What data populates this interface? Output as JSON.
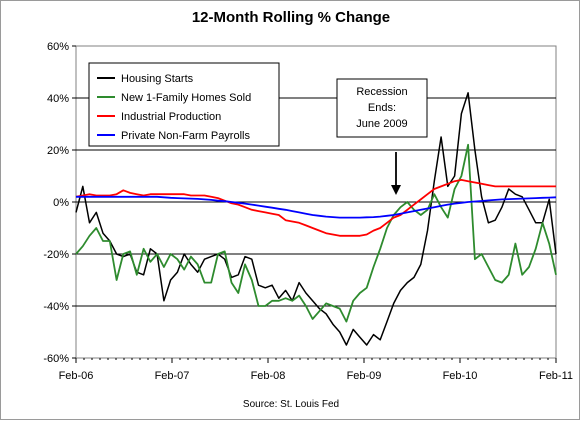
{
  "chart_data": {
    "type": "line",
    "title": "12-Month Rolling % Change",
    "source": "Source: St. Louis Fed",
    "xlabel": "",
    "ylabel": "",
    "ylim": [
      -60,
      60
    ],
    "y_ticks": [
      -60,
      -40,
      -20,
      0,
      20,
      40,
      60
    ],
    "y_tick_labels": [
      "-60%",
      "-40%",
      "-20%",
      "0%",
      "20%",
      "40%",
      "60%"
    ],
    "x_ticks": [
      "Feb-06",
      "Feb-07",
      "Feb-08",
      "Feb-09",
      "Feb-10",
      "Feb-11"
    ],
    "grid": "horizontal",
    "legend_position": "top-left",
    "annotation": {
      "lines": [
        "Recession",
        "Ends:",
        "June 2009"
      ],
      "points_to": "2009-06"
    },
    "x_start": "2006-02",
    "series": [
      {
        "name": "Housing Starts",
        "color": "#000000",
        "values": [
          -4,
          6,
          -8,
          -4,
          -12,
          -15,
          -20,
          -21,
          -20,
          -27,
          -28,
          -18,
          -20,
          -38,
          -30,
          -27,
          -20,
          -24,
          -27,
          -22,
          -21,
          -20,
          -22,
          -29,
          -28,
          -21,
          -22,
          -32,
          -33,
          -32,
          -37,
          -34,
          -38,
          -31,
          -35,
          -38,
          -41,
          -43,
          -47,
          -50,
          -55,
          -49,
          -52,
          -55,
          -51,
          -53,
          -46,
          -39,
          -34,
          -31,
          -29,
          -24,
          -11,
          8,
          25,
          6,
          10,
          34,
          42,
          20,
          2,
          -8,
          -7,
          -2,
          5,
          3,
          2,
          -3,
          -8,
          -8,
          1,
          -20
        ]
      },
      {
        "name": "New 1-Family Homes Sold",
        "color": "#2e8b2e",
        "values": [
          -20,
          -17,
          -13,
          -10,
          -15,
          -15,
          -30,
          -20,
          -19,
          -28,
          -18,
          -23,
          -20,
          -25,
          -20,
          -22,
          -26,
          -21,
          -24,
          -31,
          -31,
          -20,
          -19,
          -31,
          -35,
          -24,
          -30,
          -40,
          -40,
          -38,
          -38,
          -37,
          -38,
          -36,
          -40,
          -45,
          -42,
          -39,
          -40,
          -41,
          -46,
          -38,
          -35,
          -33,
          -25,
          -18,
          -10,
          -5,
          -2,
          0,
          -3,
          -5,
          -3,
          3,
          -2,
          -6,
          5,
          10,
          22,
          -22,
          -20,
          -25,
          -30,
          -31,
          -28,
          -16,
          -28,
          -25,
          -18,
          -8,
          -16,
          -28
        ]
      },
      {
        "name": "Industrial Production",
        "color": "#ff0000",
        "values": [
          2,
          2.5,
          3,
          2.5,
          2.5,
          2.5,
          3,
          4.5,
          3.5,
          3,
          2.5,
          3,
          3,
          3,
          3,
          3,
          3,
          2.5,
          2.5,
          2.5,
          2,
          1.5,
          0.5,
          -0.5,
          -1,
          -2,
          -3,
          -3.5,
          -4,
          -4.5,
          -5,
          -7,
          -7.5,
          -8,
          -9,
          -10,
          -11,
          -12,
          -12.5,
          -13,
          -13,
          -13,
          -13,
          -12.5,
          -11,
          -10,
          -8,
          -6,
          -5,
          -3,
          -1,
          1,
          3,
          5,
          6,
          7,
          8,
          8.5,
          8,
          7.5,
          7,
          6.5,
          6,
          6,
          6,
          6,
          6,
          6,
          6,
          6,
          6,
          6
        ]
      },
      {
        "name": "Private Non-Farm Payrolls",
        "color": "#0000ff",
        "values": [
          2,
          2,
          2,
          2,
          2,
          2,
          2,
          2,
          2,
          2,
          2,
          2,
          2,
          1.8,
          1.6,
          1.5,
          1.4,
          1.3,
          1.2,
          1,
          0.8,
          0.5,
          0.3,
          0,
          -0.3,
          -0.6,
          -1,
          -1.4,
          -1.8,
          -2.2,
          -2.6,
          -3,
          -3.5,
          -4,
          -4.5,
          -5,
          -5.3,
          -5.6,
          -5.8,
          -6,
          -6,
          -6,
          -6,
          -5.9,
          -5.8,
          -5.6,
          -5.3,
          -5,
          -4.5,
          -4,
          -3.5,
          -3,
          -2.5,
          -2,
          -1.5,
          -1,
          -0.6,
          -0.3,
          0,
          0.2,
          0.4,
          0.6,
          0.8,
          1,
          1.1,
          1.2,
          1.3,
          1.4,
          1.5,
          1.6,
          1.7,
          1.8
        ]
      }
    ]
  }
}
